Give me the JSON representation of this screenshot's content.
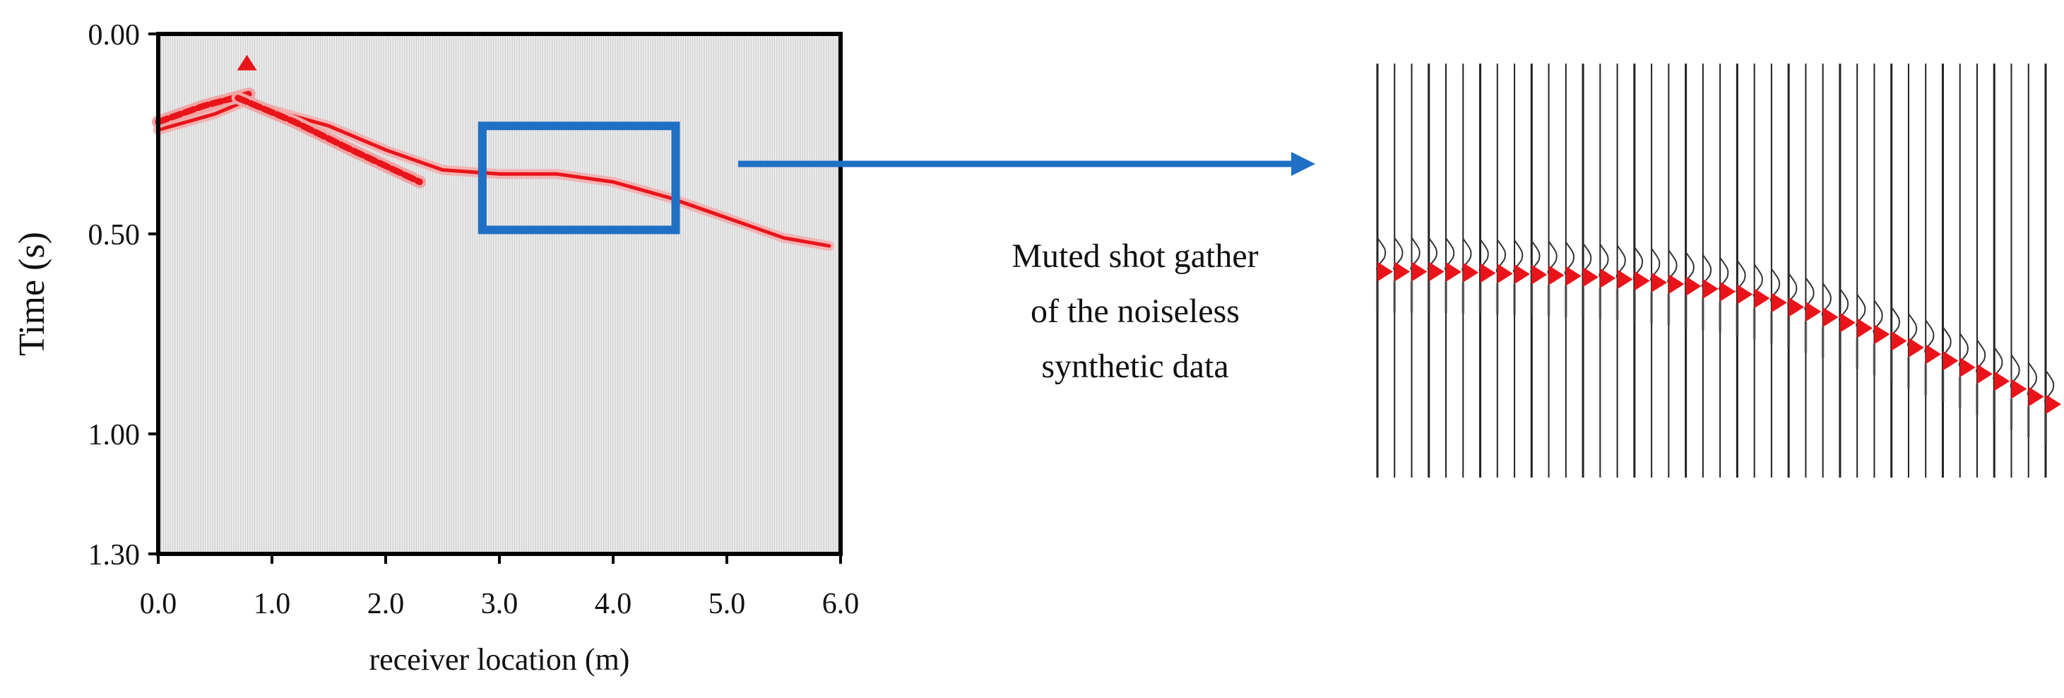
{
  "chart_data": {
    "type": "seismic-gather",
    "xlabel": "receiver location  (m)",
    "ylabel": "Time (s)",
    "xlim": [
      0.0,
      6.0
    ],
    "ylim": [
      0.0,
      1.3
    ],
    "y_inverted": true,
    "x_ticks": [
      "0.0",
      "1.0",
      "2.0",
      "3.0",
      "4.0",
      "5.0",
      "6.0"
    ],
    "y_ticks": [
      "0.00",
      "0.50",
      "1.00",
      "1.30"
    ],
    "y_tick_values": [
      0.0,
      0.5,
      1.0,
      1.3
    ],
    "event_color": "#e8141a",
    "box_color": "#1f6fc5",
    "arrow_color": "#1f6fc5",
    "first_arrival": {
      "x": [
        0.0,
        0.5,
        0.75,
        1.0,
        1.5,
        2.0,
        2.5,
        3.0,
        3.5,
        4.0,
        4.5,
        5.0,
        5.5,
        5.9
      ],
      "t": [
        0.24,
        0.2,
        0.17,
        0.19,
        0.23,
        0.29,
        0.34,
        0.35,
        0.35,
        0.37,
        0.41,
        0.46,
        0.51,
        0.53
      ]
    },
    "secondary_events": [
      {
        "x": [
          0.0,
          0.4,
          0.8
        ],
        "t": [
          0.22,
          0.18,
          0.15
        ]
      },
      {
        "x": [
          0.7,
          1.2,
          1.7,
          2.3
        ],
        "t": [
          0.16,
          0.22,
          0.29,
          0.37
        ]
      }
    ],
    "apex_event": {
      "x": 0.78,
      "t": 0.07
    },
    "zoom_box": {
      "x": [
        2.85,
        4.55
      ],
      "t": [
        0.23,
        0.49
      ]
    },
    "trace_count": 290
  },
  "zoom_panel": {
    "trace_count": 40,
    "curve_t": [
      0.53,
      0.53,
      0.535,
      0.54,
      0.55,
      0.565,
      0.59,
      0.63,
      0.68,
      0.74,
      0.8,
      0.87
    ]
  },
  "caption": {
    "line1": "Muted shot gather",
    "line2": "of the noiseless",
    "line3": "synthetic data"
  }
}
